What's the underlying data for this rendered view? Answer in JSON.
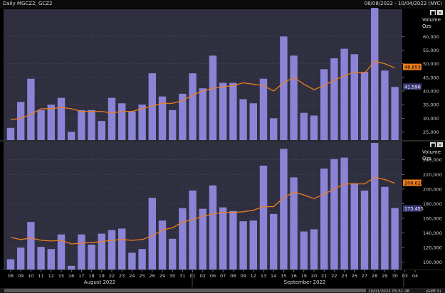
{
  "header": {
    "title": "Daily MGCZ2, GCZ2",
    "date_range": "08/08/2022 - 10/04/2022 (NYC)"
  },
  "footer": {
    "timestamp": "10/01/2022 05:51:28",
    "timezone": "(GMT-5)"
  },
  "panel_controls": [
    "■",
    "×"
  ],
  "chart_data": [
    {
      "type": "bar",
      "instrument": "MGCZ2",
      "ylabel": "Volume Ozs",
      "ylim": [
        22000,
        70000
      ],
      "yticks": [
        25000,
        30000,
        35000,
        40000,
        45000,
        50000,
        55000,
        60000
      ],
      "ytick_labels": [
        "25,000",
        "30,000",
        "35,000",
        "40,000",
        "45,000",
        "50,000",
        "55,000",
        "60,000"
      ],
      "categories": [
        "08",
        "09",
        "10",
        "11",
        "12",
        "15",
        "16",
        "17",
        "18",
        "19",
        "22",
        "23",
        "24",
        "25",
        "26",
        "29",
        "30",
        "31",
        "01",
        "02",
        "06",
        "07",
        "08",
        "09",
        "12",
        "13",
        "14",
        "15",
        "16",
        "19",
        "20",
        "21",
        "22",
        "23",
        "26",
        "27",
        "28",
        "29",
        "30"
      ],
      "series": [
        {
          "name": "",
          "kind": "bar",
          "color": "#8b84d6",
          "values": [
            26500,
            36000,
            44500,
            33000,
            35000,
            37500,
            25000,
            33000,
            33000,
            29000,
            37500,
            35500,
            32500,
            35000,
            46500,
            38000,
            33000,
            39000,
            46500,
            41000,
            53000,
            43000,
            43000,
            37000,
            35500,
            44500,
            30000,
            60000,
            53000,
            32000,
            31000,
            48000,
            52000,
            55500,
            53500,
            47000,
            70500,
            47500,
            41500
          ]
        },
        {
          "name": "",
          "kind": "line",
          "color": "#f07e1c",
          "values": [
            29500,
            30000,
            31500,
            33500,
            33500,
            34000,
            33500,
            32500,
            32500,
            32500,
            32000,
            32500,
            32500,
            33500,
            34500,
            35500,
            35500,
            36500,
            38500,
            40000,
            41000,
            41500,
            42000,
            43000,
            42500,
            42000,
            40000,
            43000,
            45000,
            42500,
            40500,
            42000,
            44000,
            45500,
            47000,
            46500,
            51000,
            50000,
            48500
          ]
        }
      ],
      "last_labels": [
        {
          "text": "48,853",
          "value": 48853,
          "bg": "#f07e1c",
          "color": "#000000"
        },
        {
          "text": "41,596",
          "value": 41596,
          "bg": "#3a3a7a",
          "color": "#ffffff"
        }
      ]
    },
    {
      "type": "bar",
      "instrument": "GCZ2",
      "ylabel": "Volume Ozs",
      "ylim": [
        90000,
        265000
      ],
      "yticks": [
        100000,
        120000,
        140000,
        160000,
        180000,
        200000,
        220000,
        240000
      ],
      "ytick_labels": [
        "100,000",
        "120,000",
        "140,000",
        "160,000",
        "180,000",
        "200,000",
        "220,000",
        "240,000"
      ],
      "categories": [
        "08",
        "09",
        "10",
        "11",
        "12",
        "15",
        "16",
        "17",
        "18",
        "19",
        "22",
        "23",
        "24",
        "25",
        "26",
        "29",
        "30",
        "31",
        "01",
        "02",
        "06",
        "07",
        "08",
        "09",
        "12",
        "13",
        "14",
        "15",
        "16",
        "19",
        "20",
        "21",
        "22",
        "23",
        "26",
        "27",
        "28",
        "29",
        "30"
      ],
      "series": [
        {
          "name": "",
          "kind": "bar",
          "color": "#8b84d6",
          "values": [
            104000,
            120000,
            155000,
            121000,
            118000,
            138000,
            95000,
            138000,
            124000,
            139000,
            144000,
            146000,
            113000,
            118000,
            188000,
            157000,
            132000,
            174000,
            198000,
            173000,
            205000,
            175000,
            170000,
            156000,
            157000,
            232000,
            166000,
            255000,
            216000,
            142000,
            145000,
            228000,
            241000,
            243000,
            208000,
            198000,
            263000,
            203000,
            174000
          ]
        },
        {
          "name": "",
          "kind": "line",
          "color": "#f07e1c",
          "values": [
            134000,
            131000,
            133000,
            130000,
            129000,
            130000,
            125000,
            126000,
            127000,
            128000,
            130000,
            131000,
            130000,
            131000,
            136000,
            144000,
            147000,
            155000,
            158000,
            163000,
            166000,
            168000,
            168000,
            169000,
            171000,
            176000,
            176000,
            188000,
            196000,
            192000,
            187000,
            193000,
            200000,
            207000,
            207000,
            207000,
            216000,
            213000,
            208000
          ]
        }
      ],
      "last_labels": [
        {
          "text": "208,626",
          "value": 208626,
          "bg": "#f07e1c",
          "color": "#000000"
        },
        {
          "text": "173,455",
          "value": 173455,
          "bg": "#3a3a7a",
          "color": "#ffffff"
        }
      ]
    }
  ],
  "x_axis": {
    "tick_labels": [
      "08",
      "09",
      "10",
      "11",
      "12",
      "15",
      "16",
      "17",
      "18",
      "19",
      "22",
      "23",
      "24",
      "25",
      "26",
      "29",
      "30",
      "31",
      "01",
      "02",
      "06",
      "07",
      "08",
      "09",
      "12",
      "13",
      "14",
      "15",
      "16",
      "19",
      "20",
      "21",
      "22",
      "23",
      "26",
      "27",
      "28",
      "29",
      "30",
      "03",
      "04"
    ],
    "month_labels": [
      "August 2022",
      "September 2022"
    ]
  }
}
